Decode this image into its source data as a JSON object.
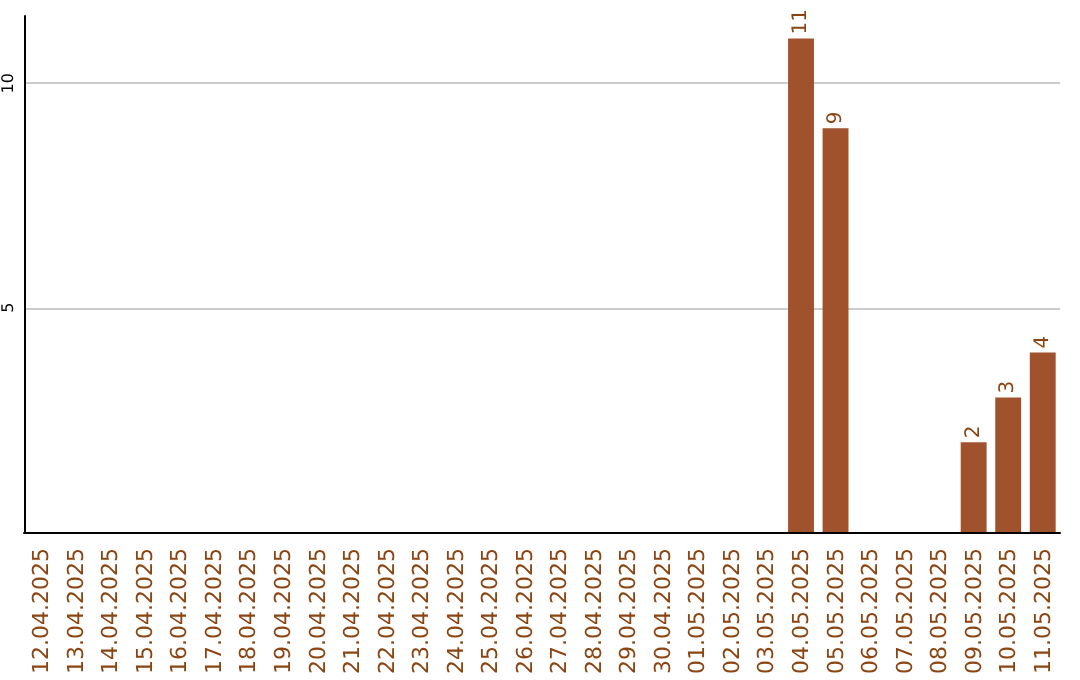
{
  "chart_data": {
    "type": "bar",
    "categories": [
      "12.04.2025",
      "13.04.2025",
      "14.04.2025",
      "15.04.2025",
      "16.04.2025",
      "17.04.2025",
      "18.04.2025",
      "19.04.2025",
      "20.04.2025",
      "21.04.2025",
      "22.04.2025",
      "23.04.2025",
      "24.04.2025",
      "25.04.2025",
      "26.04.2025",
      "27.04.2025",
      "28.04.2025",
      "29.04.2025",
      "30.04.2025",
      "01.05.2025",
      "02.05.2025",
      "03.05.2025",
      "04.05.2025",
      "05.05.2025",
      "06.05.2025",
      "07.05.2025",
      "08.05.2025",
      "09.05.2025",
      "10.05.2025",
      "11.05.2025"
    ],
    "values": [
      0,
      0,
      0,
      0,
      0,
      0,
      0,
      0,
      0,
      0,
      0,
      0,
      0,
      0,
      0,
      0,
      0,
      0,
      0,
      0,
      0,
      0,
      11,
      9,
      0,
      0,
      0,
      2,
      3,
      4
    ],
    "value_labels": [
      null,
      null,
      null,
      null,
      null,
      null,
      null,
      null,
      null,
      null,
      null,
      null,
      null,
      null,
      null,
      null,
      null,
      null,
      null,
      null,
      null,
      null,
      "11",
      "9",
      null,
      null,
      null,
      "2",
      "3",
      "4"
    ],
    "color": "#a0522d",
    "ylim": [
      0,
      11.5
    ],
    "yticks": [
      5,
      10
    ],
    "grid": "y"
  }
}
